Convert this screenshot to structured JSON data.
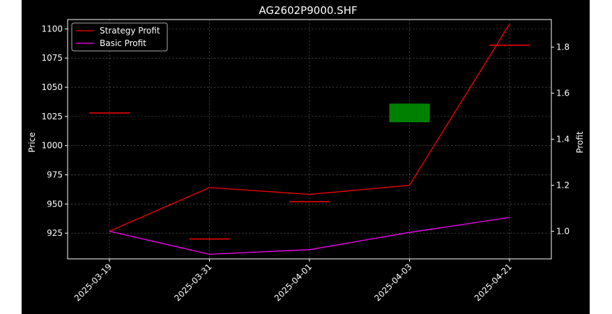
{
  "chart_data": {
    "type": "line",
    "title": "AG2602P9000.SHF",
    "ylabel": "Price",
    "y2label": "Profit",
    "categories": [
      "2025-03-19",
      "2025-03-31",
      "2025-04-01",
      "2025-04-03",
      "2025-04-21"
    ],
    "ylim": [
      903,
      1108
    ],
    "y2lim": [
      0.88,
      1.92
    ],
    "yticks": [
      925,
      950,
      975,
      1000,
      1025,
      1050,
      1075,
      1100
    ],
    "y2ticks": [
      1.0,
      1.2,
      1.4,
      1.6,
      1.8
    ],
    "grid": true,
    "legend_position": "top-left",
    "background": "#000000",
    "series": [
      {
        "name": "Strategy Profit",
        "axis": "right",
        "color": "#ff0000",
        "values": [
          1.0,
          1.19,
          1.16,
          1.2,
          1.9
        ]
      },
      {
        "name": "Basic Profit",
        "axis": "right",
        "color": "#ff00ff",
        "values": [
          1.0,
          0.9,
          0.92,
          0.995,
          1.06
        ]
      }
    ],
    "candles": [
      {
        "category": "2025-03-19",
        "open": 1028,
        "close": 1028,
        "color": "#ff0000"
      },
      {
        "category": "2025-03-31",
        "open": 920,
        "close": 920,
        "color": "#ff0000"
      },
      {
        "category": "2025-04-01",
        "open": 952,
        "close": 952,
        "color": "#ff0000"
      },
      {
        "category": "2025-04-03",
        "open": 1020,
        "close": 1036,
        "color": "#008000"
      },
      {
        "category": "2025-04-21",
        "open": 1086,
        "close": 1086,
        "color": "#ff0000"
      }
    ]
  }
}
